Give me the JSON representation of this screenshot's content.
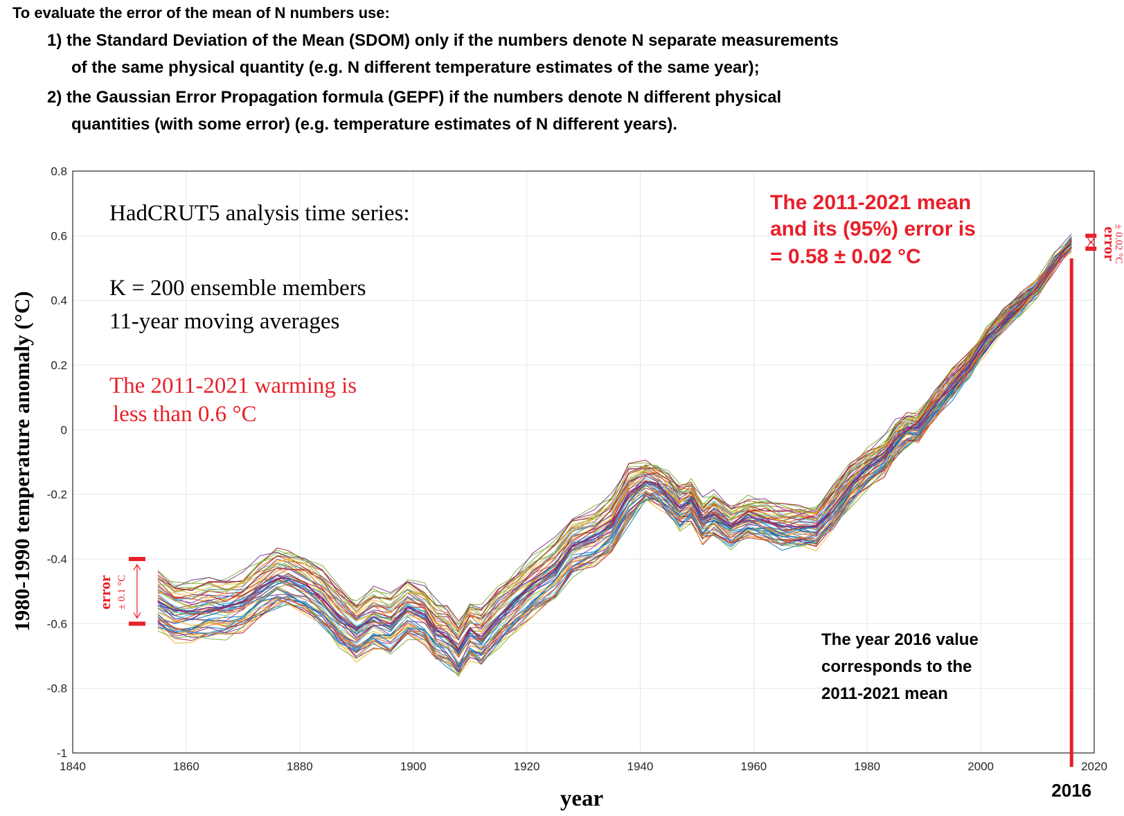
{
  "header": {
    "line0": "To evaluate the error of the mean of N numbers use:",
    "item1_a": "1) the Standard Deviation of the Mean (SDOM) only if the numbers denote N separate measurements",
    "item1_b": "of the same physical quantity (e.g.  N different temperature estimates of the same year);",
    "item2_a": "2) the Gaussian Error Propagation formula (GEPF) if the numbers denote N different physical",
    "item2_b": "quantities (with some error) (e.g. temperature estimates of N different years)."
  },
  "colors": {
    "annotation_red": "#e8202a",
    "axis": "#262626",
    "grid": "#e6e6e6",
    "palette": [
      "#0072bd",
      "#d95319",
      "#edb120",
      "#7e2f8e",
      "#77ac30",
      "#4dbeee",
      "#a2142f"
    ]
  },
  "chart_data": {
    "type": "line",
    "title": "HadCRUT5 analysis time series:",
    "subtitle_lines": [
      "K = 200 ensemble members",
      "11-year moving averages"
    ],
    "xlabel": "year",
    "ylabel": "1980-1990 temperature anomaly (°C)",
    "xlim": [
      1840,
      2020
    ],
    "ylim": [
      -1,
      0.8
    ],
    "xticks": [
      1840,
      1860,
      1880,
      1900,
      1920,
      1940,
      1960,
      1980,
      2000,
      2020
    ],
    "yticks": [
      -1,
      -0.8,
      -0.6,
      -0.4,
      -0.2,
      0,
      0.2,
      0.4,
      0.6,
      0.8
    ],
    "ytick_labels": [
      "-1",
      "-0.8",
      "-0.6",
      "-0.4",
      "-0.2",
      "0",
      "0.2",
      "0.4",
      "0.6",
      "0.8"
    ],
    "grid": true,
    "ensemble_members": 200,
    "drawn_ensemble_lines": 60,
    "ensemble_mean": {
      "x": [
        1855,
        1858,
        1861,
        1864,
        1867,
        1870,
        1873,
        1876,
        1878,
        1881,
        1884,
        1887,
        1890,
        1893,
        1896,
        1899,
        1902,
        1904,
        1906,
        1908,
        1910,
        1912,
        1915,
        1918,
        1921,
        1925,
        1928,
        1932,
        1935,
        1938,
        1941,
        1943,
        1945,
        1947,
        1949,
        1951,
        1953,
        1956,
        1959,
        1962,
        1965,
        1968,
        1971,
        1974,
        1977,
        1980,
        1983,
        1985,
        1987,
        1989,
        1992,
        1995,
        1998,
        2001,
        2004,
        2007,
        2010,
        2013,
        2016
      ],
      "y": [
        -0.53,
        -0.56,
        -0.56,
        -0.55,
        -0.55,
        -0.53,
        -0.49,
        -0.46,
        -0.46,
        -0.48,
        -0.52,
        -0.58,
        -0.62,
        -0.58,
        -0.6,
        -0.55,
        -0.57,
        -0.62,
        -0.64,
        -0.68,
        -0.62,
        -0.64,
        -0.58,
        -0.53,
        -0.48,
        -0.43,
        -0.36,
        -0.33,
        -0.29,
        -0.2,
        -0.16,
        -0.17,
        -0.2,
        -0.24,
        -0.22,
        -0.28,
        -0.26,
        -0.3,
        -0.27,
        -0.28,
        -0.3,
        -0.3,
        -0.3,
        -0.24,
        -0.17,
        -0.12,
        -0.08,
        -0.03,
        0.0,
        0.01,
        0.08,
        0.14,
        0.2,
        0.28,
        0.34,
        0.39,
        0.44,
        0.52,
        0.58
      ]
    },
    "spread_high": 0.1,
    "spread_low": 0.012,
    "annotations": {
      "warming_1": "The 2011-2021 warming is",
      "warming_2": "less than 0.6 °C",
      "mean_1": "The 2011-2021 mean",
      "mean_2": "and its (95%) error is",
      "mean_3": "=  0.58 ± 0.02 °C",
      "note_1": "The year 2016 value",
      "note_2": "corresponds to the",
      "note_3": "2011-2021 mean",
      "marker_year": "2016",
      "err_left_1": "error",
      "err_left_2": "± 0.1 °C",
      "err_right_1": "error",
      "err_right_2": "± 0.02 °C"
    },
    "marked_year": 2016,
    "left_error_bar": {
      "year": 1855,
      "low": -0.6,
      "high": -0.4
    },
    "right_error_bar": {
      "year": 2016,
      "low": 0.56,
      "high": 0.6
    }
  }
}
